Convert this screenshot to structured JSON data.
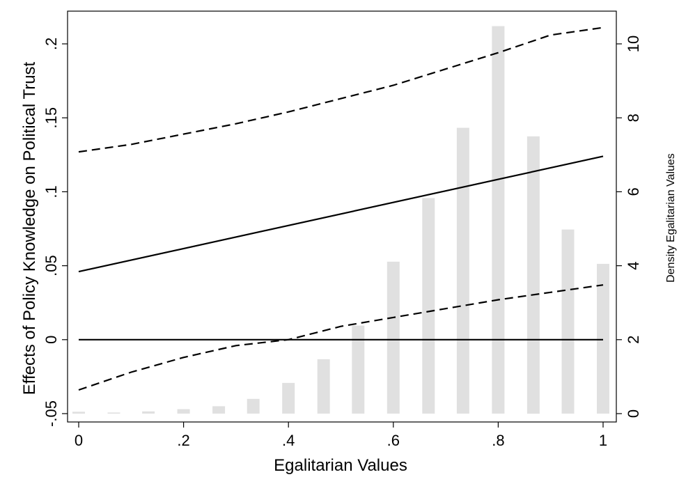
{
  "chart_data": {
    "type": "line",
    "xlabel": "Egalitarian Values",
    "ylabel": "Effects of Policy Knowledge on Political Trust",
    "y2label": "Density Egalitarian Values",
    "xlim": [
      0,
      1
    ],
    "ylim": [
      -0.05,
      0.22
    ],
    "y2lim": [
      0,
      10.6
    ],
    "x_ticks": [
      0,
      0.2,
      0.4,
      0.6,
      0.8,
      1
    ],
    "x_tick_labels": [
      "0",
      ".2",
      ".4",
      ".6",
      ".8",
      "1"
    ],
    "y_ticks": [
      -0.05,
      0,
      0.05,
      0.1,
      0.15,
      0.2
    ],
    "y_tick_labels": [
      "-.05",
      "0",
      ".05",
      ".1",
      ".15",
      ".2"
    ],
    "y2_ticks": [
      0,
      2,
      4,
      6,
      8,
      10
    ],
    "y2_tick_labels": [
      "0",
      "2",
      "4",
      "6",
      "8",
      "10"
    ],
    "grid": false,
    "series": [
      {
        "role": "estimate",
        "style": "solid",
        "x": [
          0,
          1
        ],
        "values": [
          0.046,
          0.124
        ]
      },
      {
        "role": "upper-ci",
        "style": "dashed",
        "x": [
          0,
          0.1,
          0.2,
          0.3,
          0.4,
          0.5,
          0.6,
          0.7,
          0.8,
          0.9,
          1
        ],
        "values": [
          0.127,
          0.132,
          0.139,
          0.146,
          0.154,
          0.163,
          0.172,
          0.183,
          0.194,
          0.206,
          0.211
        ]
      },
      {
        "role": "lower-ci",
        "style": "dashed",
        "x": [
          0,
          0.1,
          0.2,
          0.3,
          0.4,
          0.5,
          0.6,
          0.7,
          0.8,
          0.9,
          1
        ],
        "values": [
          -0.034,
          -0.022,
          -0.012,
          -0.004,
          0.0,
          0.009,
          0.015,
          0.021,
          0.027,
          0.032,
          0.037
        ]
      },
      {
        "role": "reference",
        "style": "solid",
        "x": [
          0,
          1
        ],
        "values": [
          0,
          0
        ]
      }
    ],
    "histogram": {
      "axis": "right",
      "x": [
        0,
        0.067,
        0.133,
        0.2,
        0.267,
        0.333,
        0.4,
        0.467,
        0.533,
        0.6,
        0.667,
        0.733,
        0.8,
        0.867,
        0.933,
        1
      ],
      "density": [
        0.05,
        0.03,
        0.06,
        0.12,
        0.2,
        0.4,
        0.83,
        1.47,
        2.38,
        4.11,
        5.83,
        7.73,
        10.48,
        7.5,
        4.98,
        4.05
      ]
    },
    "colors": {
      "line": "#000000",
      "bars": "#e0e0e0"
    }
  }
}
